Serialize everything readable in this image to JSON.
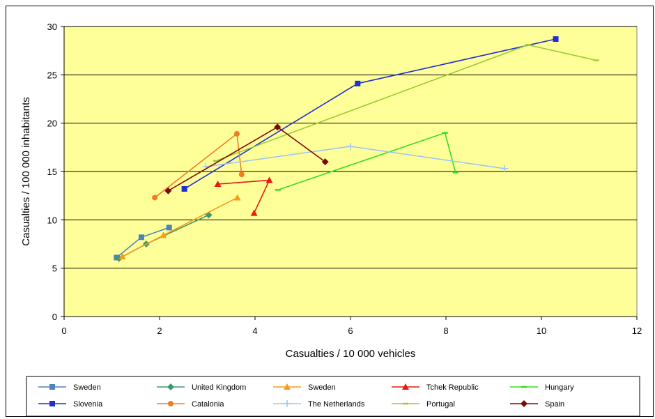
{
  "chart_data": {
    "type": "line",
    "xlabel": "Casualties / 10 000 vehicles",
    "ylabel": "Casualties / 100 000 inhabitants",
    "xlim": [
      0,
      12
    ],
    "ylim": [
      0,
      30
    ],
    "xticks": [
      0,
      2,
      4,
      6,
      8,
      10,
      12
    ],
    "yticks": [
      0,
      5,
      10,
      15,
      20,
      25,
      30
    ],
    "xtick_labels": [
      "0",
      "2",
      "4",
      "6",
      "8",
      "10",
      "12"
    ],
    "ytick_labels": [
      "0",
      "5",
      "10",
      "15",
      "20",
      "25",
      "30"
    ],
    "plot_background": "#FFFF99",
    "grid": "horizontal",
    "legend_position": "bottom",
    "series": [
      {
        "name": "Sweden",
        "color": "#4F81BD",
        "marker": "square",
        "points": [
          [
            1.1,
            6.1
          ],
          [
            1.62,
            8.2
          ],
          [
            2.2,
            9.2
          ]
        ]
      },
      {
        "name": "United Kingdom",
        "color": "#3C9A6A",
        "marker": "diamond",
        "points": [
          [
            1.15,
            6.0
          ],
          [
            1.72,
            7.5
          ],
          [
            3.03,
            10.5
          ]
        ]
      },
      {
        "name": "Sweden",
        "color": "#F79A1E",
        "marker": "triangle",
        "points": [
          [
            1.22,
            6.2
          ],
          [
            2.08,
            8.4
          ],
          [
            3.63,
            12.3
          ]
        ]
      },
      {
        "name": "Tchek Republic",
        "color": "#E8190F",
        "marker": "triangle",
        "points": [
          [
            3.22,
            13.7
          ],
          [
            4.3,
            14.1
          ],
          [
            3.98,
            10.7
          ]
        ]
      },
      {
        "name": "Hungary",
        "color": "#33DD22",
        "marker": "dash",
        "points": [
          [
            4.48,
            13.1
          ],
          [
            7.98,
            19.0
          ],
          [
            8.2,
            14.9
          ]
        ]
      },
      {
        "name": "Slovenia",
        "color": "#1F2FD0",
        "marker": "square",
        "points": [
          [
            2.52,
            13.2
          ],
          [
            6.15,
            24.1
          ],
          [
            10.3,
            28.7
          ]
        ]
      },
      {
        "name": "Catalonia",
        "color": "#F07D22",
        "marker": "circle",
        "points": [
          [
            1.9,
            12.3
          ],
          [
            3.62,
            18.9
          ],
          [
            3.72,
            14.7
          ]
        ]
      },
      {
        "name": "The Netherlands",
        "color": "#9CC6F2",
        "marker": "plus",
        "points": [
          [
            2.97,
            15.5
          ],
          [
            6.0,
            17.6
          ],
          [
            9.23,
            15.3
          ]
        ]
      },
      {
        "name": "Portugal",
        "color": "#99CC33",
        "marker": "dash",
        "points": [
          [
            3.18,
            16.1
          ],
          [
            9.72,
            28.1
          ],
          [
            11.15,
            26.5
          ]
        ]
      },
      {
        "name": "Spain",
        "color": "#7A0A0A",
        "marker": "diamond",
        "points": [
          [
            2.18,
            13.0
          ],
          [
            4.47,
            19.6
          ],
          [
            5.47,
            16.0
          ]
        ]
      }
    ]
  },
  "legend": {
    "items": [
      {
        "label": "Sweden",
        "series_index": 0
      },
      {
        "label": "United Kingdom",
        "series_index": 1
      },
      {
        "label": "Sweden",
        "series_index": 2
      },
      {
        "label": "Tchek Republic",
        "series_index": 3
      },
      {
        "label": "Hungary",
        "series_index": 4
      },
      {
        "label": "Slovenia",
        "series_index": 5
      },
      {
        "label": "Catalonia",
        "series_index": 6
      },
      {
        "label": "The Netherlands",
        "series_index": 7
      },
      {
        "label": "Portugal",
        "series_index": 8
      },
      {
        "label": "Spain",
        "series_index": 9
      }
    ]
  }
}
